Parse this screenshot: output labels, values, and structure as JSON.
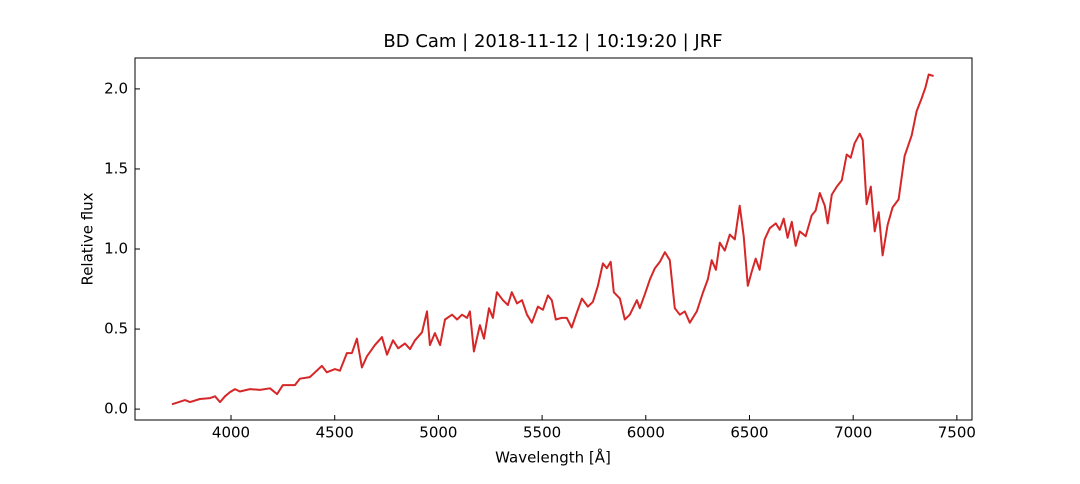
{
  "chart_data": {
    "type": "line",
    "title": "BD Cam | 2018-11-12 | 10:19:20 | JRF",
    "x_label": "Wavelength [Å]",
    "y_label": "Relative flux",
    "xlim": [
      3537,
      7573
    ],
    "ylim": [
      -0.068,
      2.193
    ],
    "xticks": [
      4000,
      4500,
      5000,
      5500,
      6000,
      6500,
      7000,
      7500
    ],
    "yticks": [
      {
        "value": 0,
        "label": "0.0"
      },
      0.5,
      {
        "value": 1,
        "label": "1.0"
      },
      1.5,
      {
        "value": 2,
        "label": "2.0"
      }
    ],
    "series": [
      {
        "name": "BD Cam",
        "color": "#d62728",
        "x": [
          3715,
          3778,
          3802,
          3850,
          3899,
          3923,
          3947,
          3971,
          3995,
          4019,
          4043,
          4091,
          4140,
          4188,
          4222,
          4250,
          4308,
          4332,
          4380,
          4405,
          4438,
          4462,
          4501,
          4525,
          4559,
          4583,
          4607,
          4631,
          4655,
          4694,
          4728,
          4752,
          4781,
          4806,
          4839,
          4863,
          4887,
          4921,
          4945,
          4959,
          4983,
          5008,
          5032,
          5066,
          5090,
          5114,
          5138,
          5152,
          5171,
          5200,
          5220,
          5244,
          5263,
          5282,
          5311,
          5335,
          5354,
          5379,
          5403,
          5427,
          5451,
          5480,
          5504,
          5528,
          5547,
          5566,
          5595,
          5619,
          5643,
          5667,
          5692,
          5721,
          5745,
          5769,
          5793,
          5812,
          5831,
          5846,
          5875,
          5899,
          5923,
          5957,
          5971,
          5996,
          6020,
          6044,
          6068,
          6092,
          6116,
          6140,
          6164,
          6188,
          6212,
          6246,
          6275,
          6299,
          6318,
          6338,
          6357,
          6381,
          6405,
          6429,
          6453,
          6472,
          6492,
          6511,
          6530,
          6549,
          6573,
          6598,
          6627,
          6646,
          6665,
          6684,
          6704,
          6723,
          6742,
          6771,
          6800,
          6819,
          6839,
          6863,
          6877,
          6897,
          6921,
          6945,
          6969,
          6988,
          7007,
          7032,
          7046,
          7065,
          7085,
          7104,
          7123,
          7142,
          7166,
          7190,
          7219,
          7248,
          7282,
          7306,
          7330,
          7349,
          7364,
          7388
        ],
        "values": [
          0.03,
          0.056,
          0.044,
          0.063,
          0.069,
          0.08,
          0.044,
          0.08,
          0.106,
          0.125,
          0.11,
          0.125,
          0.12,
          0.13,
          0.094,
          0.15,
          0.15,
          0.19,
          0.2,
          0.23,
          0.27,
          0.23,
          0.25,
          0.24,
          0.35,
          0.35,
          0.44,
          0.26,
          0.33,
          0.4,
          0.45,
          0.34,
          0.43,
          0.38,
          0.41,
          0.375,
          0.43,
          0.48,
          0.61,
          0.4,
          0.475,
          0.4,
          0.56,
          0.59,
          0.56,
          0.59,
          0.57,
          0.61,
          0.36,
          0.525,
          0.44,
          0.63,
          0.57,
          0.73,
          0.68,
          0.65,
          0.73,
          0.66,
          0.68,
          0.59,
          0.54,
          0.64,
          0.62,
          0.71,
          0.68,
          0.56,
          0.57,
          0.57,
          0.51,
          0.6,
          0.69,
          0.64,
          0.67,
          0.77,
          0.91,
          0.88,
          0.92,
          0.73,
          0.69,
          0.56,
          0.59,
          0.68,
          0.63,
          0.72,
          0.81,
          0.88,
          0.92,
          0.98,
          0.93,
          0.63,
          0.59,
          0.61,
          0.54,
          0.61,
          0.725,
          0.81,
          0.93,
          0.87,
          1.04,
          0.99,
          1.09,
          1.06,
          1.27,
          1.08,
          0.77,
          0.86,
          0.94,
          0.87,
          1.06,
          1.13,
          1.16,
          1.12,
          1.19,
          1.07,
          1.17,
          1.02,
          1.11,
          1.08,
          1.21,
          1.24,
          1.35,
          1.27,
          1.16,
          1.34,
          1.39,
          1.43,
          1.59,
          1.57,
          1.66,
          1.72,
          1.68,
          1.28,
          1.39,
          1.11,
          1.23,
          0.96,
          1.15,
          1.26,
          1.31,
          1.58,
          1.71,
          1.86,
          1.94,
          2.01,
          2.09,
          2.08
        ]
      }
    ]
  }
}
